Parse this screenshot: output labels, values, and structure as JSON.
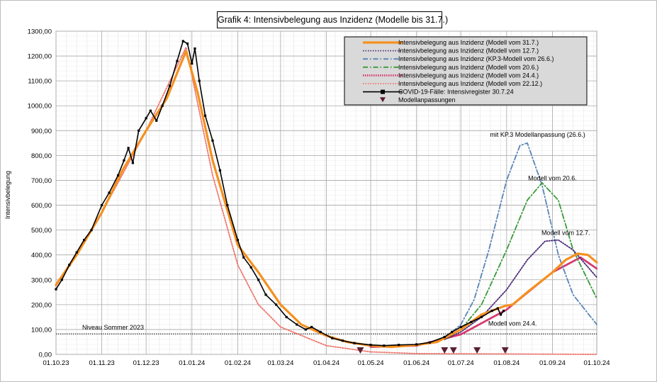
{
  "chart_data": {
    "type": "line",
    "title": "Grafik 4: Intensivbelegung  aus Inzidenz (Modelle bis 31.7.)",
    "ylabel": "Intensivbelegung",
    "xlabel": "",
    "x_ticks": [
      "01.10.23",
      "01.11.23",
      "01.12.23",
      "01.01.24",
      "01.02.24",
      "01.03.24",
      "01.04.24",
      "01.05.24",
      "01.06.24",
      "01.07.24",
      "01.08.24",
      "01.09.24",
      "01.10.24"
    ],
    "y_ticks": [
      "0,00",
      "100,00",
      "200,00",
      "300,00",
      "400,00",
      "500,00",
      "600,00",
      "700,00",
      "800,00",
      "900,00",
      "1000,00",
      "1100,00",
      "1200,00",
      "1300,00"
    ],
    "xlim": [
      "2023-10-01",
      "2024-10-01"
    ],
    "ylim": [
      0,
      1300
    ],
    "grid": true,
    "legend_position": "top-right",
    "series": [
      {
        "name": "Intensivbelegung aus Inzidenz (Modell vom 31.7.)",
        "color": "#f5901e",
        "style": "solid-thick",
        "points": [
          [
            "2023-10-01",
            280
          ],
          [
            "2023-10-15",
            400
          ],
          [
            "2023-11-01",
            570
          ],
          [
            "2023-11-15",
            740
          ],
          [
            "2023-12-01",
            900
          ],
          [
            "2023-12-15",
            1030
          ],
          [
            "2023-12-28",
            1220
          ],
          [
            "2024-01-05",
            1050
          ],
          [
            "2024-01-15",
            780
          ],
          [
            "2024-02-01",
            440
          ],
          [
            "2024-02-15",
            330
          ],
          [
            "2024-03-01",
            200
          ],
          [
            "2024-03-15",
            120
          ],
          [
            "2024-04-01",
            75
          ],
          [
            "2024-04-15",
            50
          ],
          [
            "2024-05-01",
            35
          ],
          [
            "2024-05-15",
            30
          ],
          [
            "2024-06-01",
            38
          ],
          [
            "2024-06-15",
            50
          ],
          [
            "2024-07-01",
            100
          ],
          [
            "2024-07-15",
            160
          ],
          [
            "2024-07-31",
            195
          ],
          [
            "2024-08-05",
            200
          ],
          [
            "2024-08-15",
            250
          ],
          [
            "2024-09-01",
            330
          ],
          [
            "2024-09-10",
            380
          ],
          [
            "2024-09-18",
            405
          ],
          [
            "2024-09-25",
            400
          ],
          [
            "2024-10-01",
            370
          ]
        ]
      },
      {
        "name": "Intensivbelegung aus Inzidenz (Modell vom 12.7.)",
        "color": "#4b2a7a",
        "style": "dotted",
        "points": [
          [
            "2024-06-20",
            60
          ],
          [
            "2024-07-01",
            90
          ],
          [
            "2024-07-15",
            150
          ],
          [
            "2024-08-01",
            260
          ],
          [
            "2024-08-15",
            380
          ],
          [
            "2024-08-27",
            455
          ],
          [
            "2024-09-05",
            460
          ],
          [
            "2024-09-15",
            420
          ],
          [
            "2024-10-01",
            310
          ]
        ]
      },
      {
        "name": "Intensivbelegung aus Inzidenz (KP.3-Modell vom 26.6.)",
        "color": "#5a84b8",
        "style": "dashdot",
        "points": [
          [
            "2024-06-20",
            65
          ],
          [
            "2024-07-01",
            120
          ],
          [
            "2024-07-10",
            220
          ],
          [
            "2024-07-20",
            420
          ],
          [
            "2024-08-01",
            700
          ],
          [
            "2024-08-10",
            840
          ],
          [
            "2024-08-15",
            850
          ],
          [
            "2024-08-25",
            680
          ],
          [
            "2024-09-05",
            400
          ],
          [
            "2024-09-15",
            240
          ],
          [
            "2024-10-01",
            120
          ]
        ]
      },
      {
        "name": "Intensivbelegung aus Inzidenz (Modell vom 20.6.)",
        "color": "#3a9a3a",
        "style": "dashdot",
        "points": [
          [
            "2024-06-20",
            60
          ],
          [
            "2024-07-01",
            100
          ],
          [
            "2024-07-15",
            200
          ],
          [
            "2024-08-01",
            420
          ],
          [
            "2024-08-15",
            620
          ],
          [
            "2024-08-25",
            690
          ],
          [
            "2024-09-05",
            620
          ],
          [
            "2024-09-15",
            420
          ],
          [
            "2024-10-01",
            225
          ]
        ]
      },
      {
        "name": "Intensivbelegung aus Inzidenz (Modell vom 24.4.)",
        "color": "#d6386e",
        "style": "dotted-thick",
        "points": [
          [
            "2024-05-01",
            30
          ],
          [
            "2024-06-01",
            35
          ],
          [
            "2024-07-01",
            80
          ],
          [
            "2024-08-01",
            180
          ],
          [
            "2024-09-01",
            330
          ],
          [
            "2024-09-20",
            390
          ],
          [
            "2024-10-01",
            345
          ]
        ]
      },
      {
        "name": "Intensivbelegung aus Inzidenz (Modell vom 22.12.)",
        "color": "#f07068",
        "style": "dotted",
        "points": [
          [
            "2023-10-01",
            275
          ],
          [
            "2023-11-01",
            570
          ],
          [
            "2023-12-01",
            900
          ],
          [
            "2023-12-28",
            1235
          ],
          [
            "2024-01-15",
            720
          ],
          [
            "2024-02-01",
            360
          ],
          [
            "2024-02-15",
            200
          ],
          [
            "2024-03-01",
            110
          ],
          [
            "2024-04-01",
            35
          ],
          [
            "2024-05-01",
            10
          ],
          [
            "2024-06-01",
            3
          ],
          [
            "2024-10-01",
            0
          ]
        ]
      },
      {
        "name": "COVID-19-Fälle: Intensivregister 30.7.24",
        "color": "#000000",
        "style": "solid-markers",
        "points": [
          [
            "2023-10-01",
            262
          ],
          [
            "2023-10-05",
            300
          ],
          [
            "2023-10-10",
            360
          ],
          [
            "2023-10-15",
            410
          ],
          [
            "2023-10-20",
            460
          ],
          [
            "2023-10-25",
            500
          ],
          [
            "2023-11-01",
            600
          ],
          [
            "2023-11-06",
            650
          ],
          [
            "2023-11-12",
            720
          ],
          [
            "2023-11-16",
            780
          ],
          [
            "2023-11-19",
            830
          ],
          [
            "2023-11-22",
            770
          ],
          [
            "2023-11-26",
            900
          ],
          [
            "2023-12-01",
            950
          ],
          [
            "2023-12-04",
            980
          ],
          [
            "2023-12-08",
            940
          ],
          [
            "2023-12-12",
            1000
          ],
          [
            "2023-12-17",
            1080
          ],
          [
            "2023-12-22",
            1180
          ],
          [
            "2023-12-26",
            1260
          ],
          [
            "2023-12-29",
            1250
          ],
          [
            "2024-01-01",
            1170
          ],
          [
            "2024-01-03",
            1230
          ],
          [
            "2024-01-06",
            1100
          ],
          [
            "2024-01-10",
            960
          ],
          [
            "2024-01-15",
            860
          ],
          [
            "2024-01-20",
            740
          ],
          [
            "2024-01-25",
            600
          ],
          [
            "2024-02-01",
            460
          ],
          [
            "2024-02-05",
            390
          ],
          [
            "2024-02-10",
            350
          ],
          [
            "2024-02-15",
            300
          ],
          [
            "2024-02-20",
            240
          ],
          [
            "2024-02-27",
            200
          ],
          [
            "2024-03-05",
            150
          ],
          [
            "2024-03-12",
            120
          ],
          [
            "2024-03-18",
            100
          ],
          [
            "2024-03-22",
            110
          ],
          [
            "2024-03-28",
            90
          ],
          [
            "2024-04-05",
            65
          ],
          [
            "2024-04-12",
            55
          ],
          [
            "2024-04-20",
            45
          ],
          [
            "2024-05-01",
            38
          ],
          [
            "2024-05-10",
            35
          ],
          [
            "2024-05-20",
            38
          ],
          [
            "2024-06-01",
            40
          ],
          [
            "2024-06-10",
            48
          ],
          [
            "2024-06-20",
            70
          ],
          [
            "2024-06-25",
            90
          ],
          [
            "2024-07-01",
            110
          ],
          [
            "2024-07-08",
            130
          ],
          [
            "2024-07-15",
            150
          ],
          [
            "2024-07-22",
            175
          ],
          [
            "2024-07-26",
            185
          ],
          [
            "2024-07-28",
            160
          ],
          [
            "2024-07-30",
            175
          ]
        ]
      }
    ],
    "reference_line": {
      "value": 82,
      "label": "Niveau Sommer 2023"
    },
    "model_adjustments": {
      "name": "Modellanpassungen",
      "dates": [
        "2024-04-24",
        "2024-06-20",
        "2024-06-26",
        "2024-07-12",
        "2024-07-31"
      ]
    },
    "annotations": [
      {
        "text": "mit KP.3 Modellanpassung (26.6.)",
        "x": "2024-08-22",
        "y": 875
      },
      {
        "text": "Modell vom 20.6.",
        "x": "2024-09-01",
        "y": 700
      },
      {
        "text": "Modell vom 12.7.",
        "x": "2024-09-10",
        "y": 480
      },
      {
        "text": "Modell vom 24.4.",
        "x": "2024-08-05",
        "y": 115
      }
    ]
  }
}
